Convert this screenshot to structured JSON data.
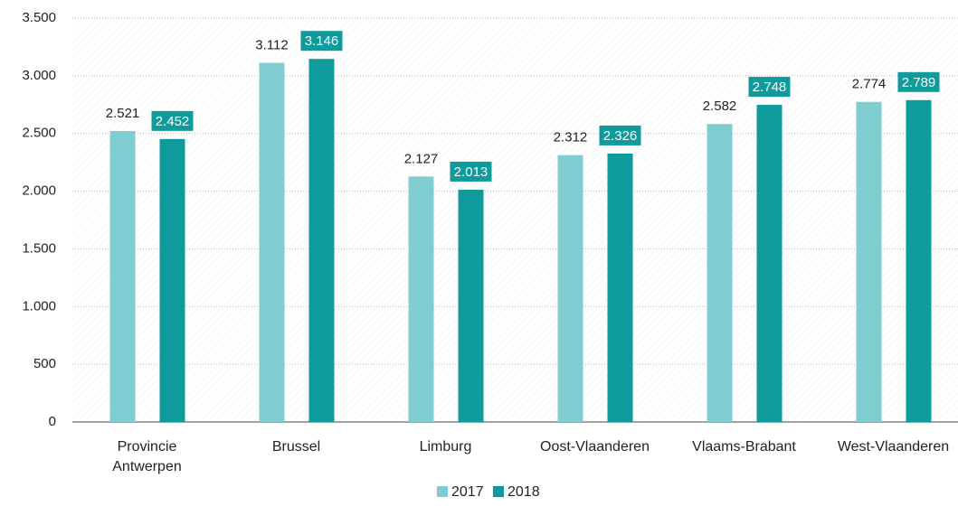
{
  "chart_data": {
    "type": "bar",
    "categories": [
      "Provincie Antwerpen",
      "Brussel",
      "Limburg",
      "Oost-Vlaanderen",
      "Vlaams-Brabant",
      "West-Vlaanderen"
    ],
    "series": [
      {
        "name": "2017",
        "color": "#80cdd1",
        "values": [
          2521,
          3112,
          2127,
          2312,
          2582,
          2774
        ],
        "value_labels": [
          "2.521",
          "3.112",
          "2.127",
          "2.312",
          "2.582",
          "2.774"
        ]
      },
      {
        "name": "2018",
        "color": "#0f9a9c",
        "values": [
          2452,
          3146,
          2013,
          2326,
          2748,
          2789
        ],
        "value_labels": [
          "2.452",
          "3.146",
          "2.013",
          "2.326",
          "2.748",
          "2.789"
        ]
      }
    ],
    "ylim": [
      0,
      3500
    ],
    "yticks": [
      0,
      500,
      {
        "value": 1000,
        "label": "1.000"
      },
      {
        "value": 1500,
        "label": "1.500"
      },
      {
        "value": 2000,
        "label": "2.000"
      },
      {
        "value": 2500,
        "label": "2.500"
      },
      {
        "value": 3000,
        "label": "3.000"
      },
      {
        "value": 3500,
        "label": "3.500"
      }
    ],
    "grid": true,
    "legend": "bottom"
  }
}
